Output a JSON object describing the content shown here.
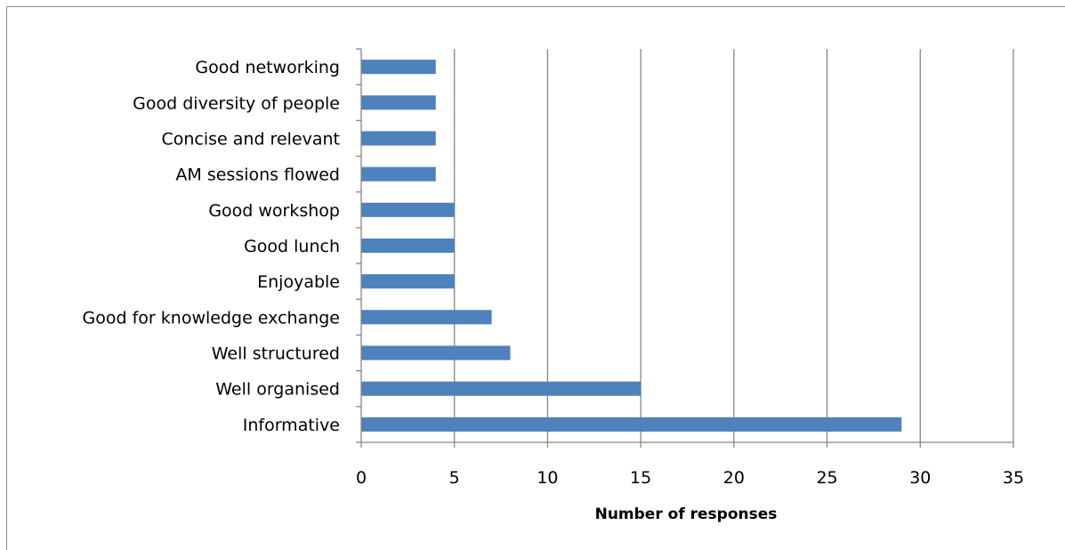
{
  "chart_data": {
    "type": "bar",
    "orientation": "horizontal",
    "categories": [
      "Good networking",
      "Good diversity of people",
      "Concise and relevant",
      "AM sessions flowed",
      "Good workshop",
      "Good lunch",
      "Enjoyable",
      "Good for knowledge exchange",
      "Well structured",
      "Well organised",
      "Informative"
    ],
    "values": [
      4,
      4,
      4,
      4,
      5,
      5,
      5,
      7,
      8,
      15,
      29
    ],
    "xlabel": "Number of responses",
    "ylabel": "",
    "xlim": [
      0,
      35
    ],
    "xticks": [
      "0",
      "5",
      "10",
      "15",
      "20",
      "25",
      "30",
      "35"
    ],
    "grid": "vertical",
    "legend": "none",
    "colors": {
      "bar": "#4f81bd",
      "grid": "#868686",
      "axis": "#868686",
      "frame": "#8c8c8c"
    }
  }
}
